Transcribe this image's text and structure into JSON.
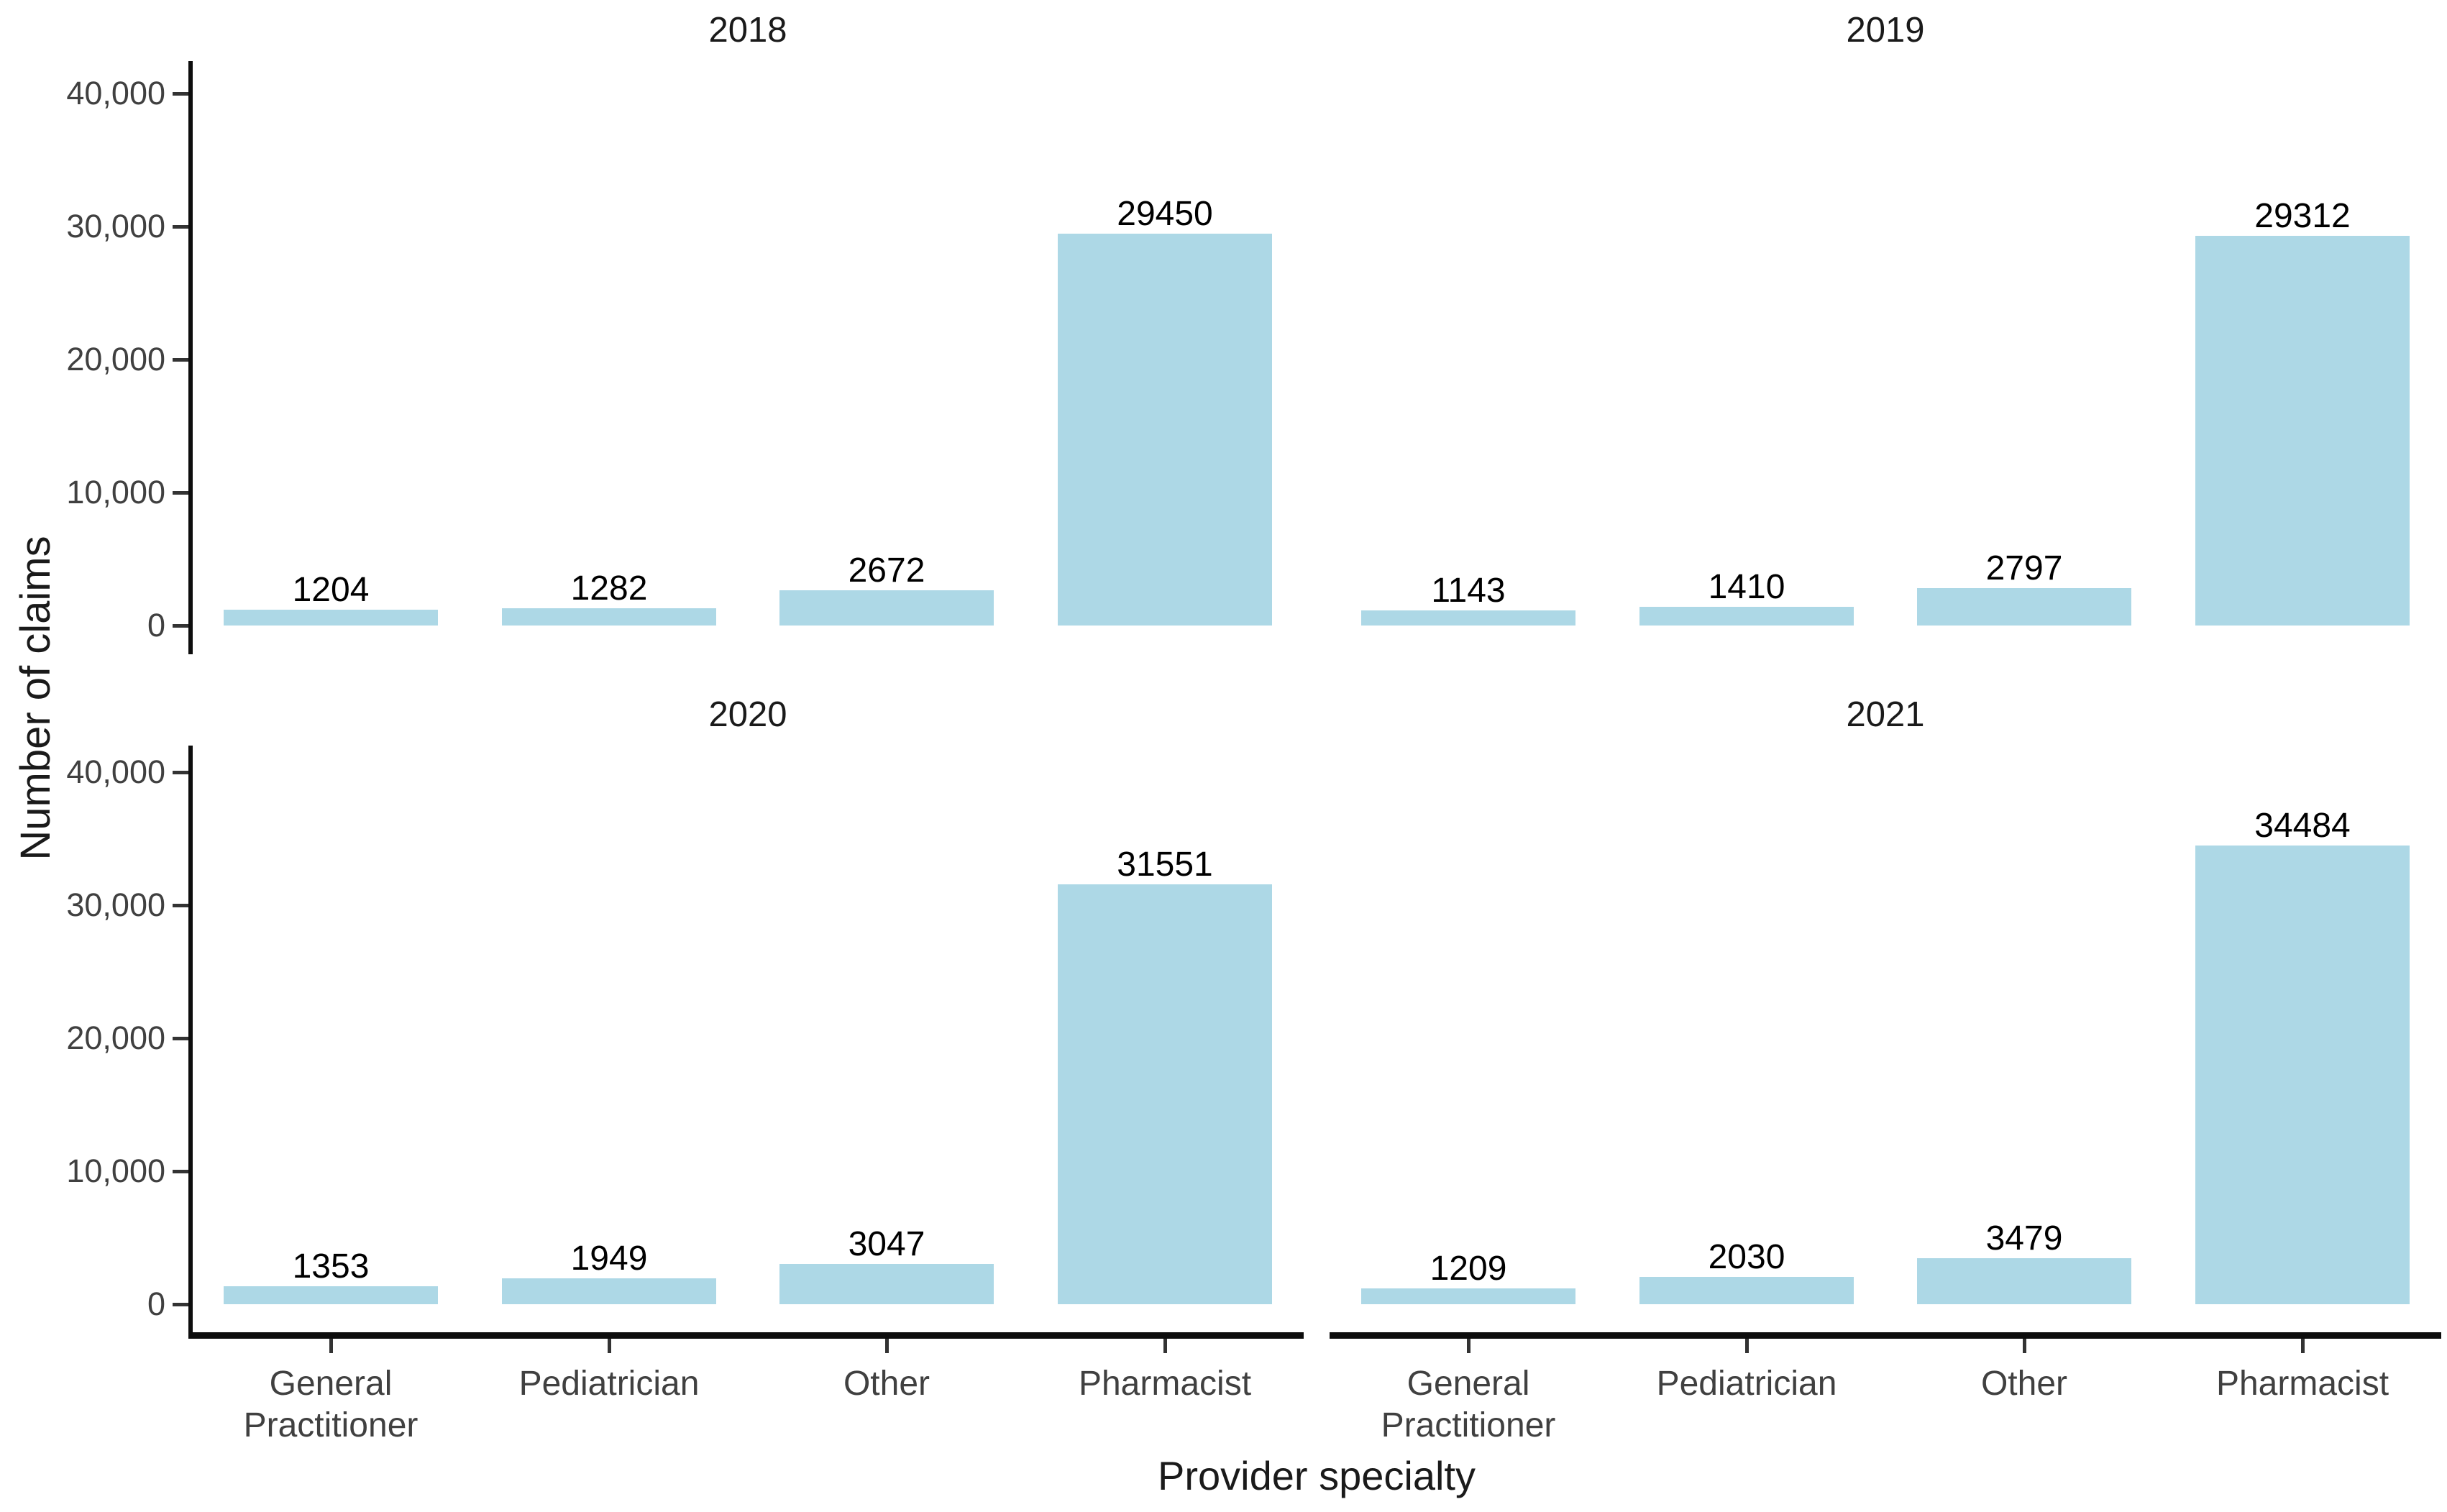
{
  "chart_data": {
    "type": "bar",
    "title": "",
    "xlabel": "Provider specialty",
    "ylabel": "Number of claims",
    "categories": [
      "General Practitioner",
      "Pediatrician",
      "Other",
      "Pharmacist"
    ],
    "y_ticks": [
      "0",
      "10,000",
      "20,000",
      "30,000",
      "40,000"
    ],
    "y_tick_values": [
      0,
      10000,
      20000,
      30000,
      40000
    ],
    "ylim": [
      0,
      42000
    ],
    "grid": false,
    "legend": false,
    "bar_color": "#ADD8E6",
    "facets": [
      {
        "title": "2018",
        "values": [
          1204,
          1282,
          2672,
          29450
        ]
      },
      {
        "title": "2019",
        "values": [
          1143,
          1410,
          2797,
          29312
        ]
      },
      {
        "title": "2020",
        "values": [
          1353,
          1949,
          3047,
          31551
        ]
      },
      {
        "title": "2021",
        "values": [
          1209,
          2030,
          3479,
          34484
        ]
      }
    ]
  }
}
